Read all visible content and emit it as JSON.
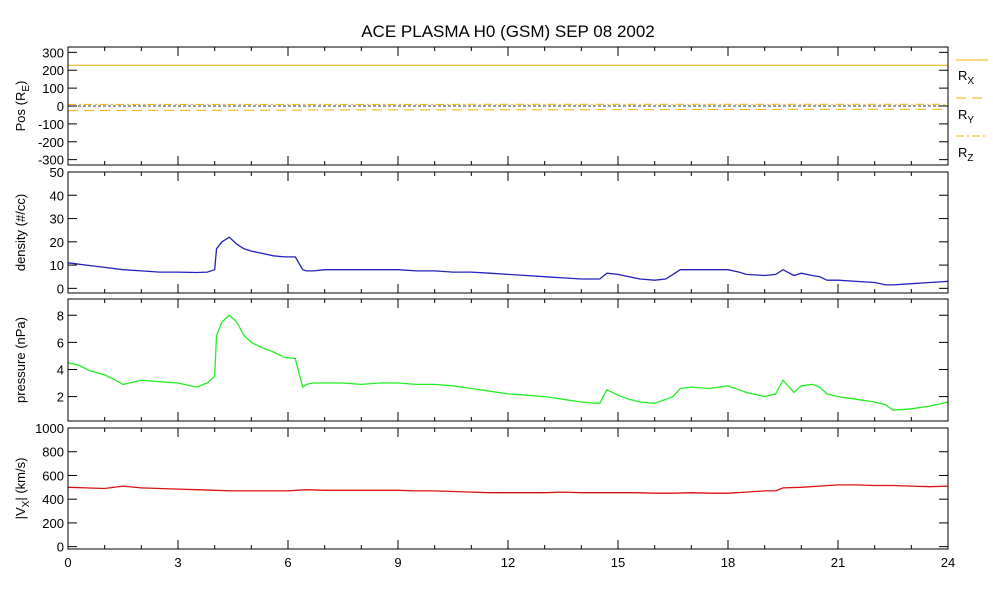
{
  "chart_data": {
    "type": "line",
    "title": "ACE PLASMA H0 (GSM)   SEP 08 2002",
    "x": {
      "range": [
        0,
        24
      ],
      "ticks": [
        0,
        3,
        6,
        9,
        12,
        15,
        18,
        21,
        24
      ],
      "tick_labels": [
        "0",
        "3",
        "6",
        "9",
        "12",
        "15",
        "18",
        "21",
        "24"
      ]
    },
    "grid": false,
    "legend_placement": "right of top panel",
    "panels": [
      {
        "id": "position",
        "ylabel": {
          "main": "Pos (R",
          "sub": "E",
          "tail": ")"
        },
        "ylim": [
          -330,
          330
        ],
        "yticks": [
          300,
          200,
          100,
          0,
          -100,
          -200,
          -300
        ],
        "ytick_labels": [
          "300",
          "200",
          "100",
          "0",
          "-100",
          "-200",
          "-300"
        ],
        "series": [
          {
            "name": "RX",
            "legend_main": "R",
            "legend_sub": "X",
            "color": "#f0b000",
            "dash": "solid",
            "x": [
              0,
              24
            ],
            "y": [
              228,
              228
            ]
          },
          {
            "name": "RY",
            "legend_main": "R",
            "legend_sub": "Y",
            "color": "#f0b000",
            "dash": "dashed",
            "x": [
              0,
              4,
              8,
              12,
              16,
              20,
              24
            ],
            "y": [
              -26,
              -24,
              -22,
              -21,
              -20,
              -19,
              -18
            ]
          },
          {
            "name": "RZ",
            "legend_main": "R",
            "legend_sub": "Z",
            "color": "#f0b000",
            "dash": "dashdot",
            "x": [
              0,
              24
            ],
            "y": [
              9,
              10
            ]
          }
        ],
        "zero_line": true
      },
      {
        "id": "density",
        "ylabel": {
          "main": "density (#/cc)"
        },
        "ylim": [
          -2,
          50
        ],
        "yticks": [
          50,
          40,
          30,
          20,
          10,
          0
        ],
        "ytick_labels": [
          "50",
          "40",
          "30",
          "20",
          "10",
          "0"
        ],
        "series": [
          {
            "name": "density",
            "color": "#2222bb",
            "x": [
              0,
              0.5,
              1,
              1.5,
              2,
              2.5,
              3,
              3.5,
              3.8,
              4.0,
              4.05,
              4.2,
              4.4,
              4.6,
              4.8,
              5.0,
              5.3,
              5.6,
              5.9,
              6.2,
              6.4,
              6.5,
              6.7,
              7,
              7.5,
              8,
              8.5,
              9,
              9.5,
              10,
              10.5,
              11,
              11.5,
              12,
              12.5,
              13,
              13.5,
              14,
              14.5,
              14.7,
              15,
              15.3,
              15.6,
              16,
              16.3,
              16.5,
              16.7,
              17,
              17.5,
              18,
              18.3,
              18.5,
              19,
              19.3,
              19.5,
              19.8,
              20,
              20.3,
              20.5,
              20.7,
              21,
              21.5,
              22,
              22.3,
              22.5,
              23,
              23.5,
              24
            ],
            "y": [
              11,
              10,
              9,
              8,
              7.5,
              7,
              7,
              6.8,
              7,
              8,
              17,
              20,
              22,
              19,
              17,
              16,
              15,
              14,
              13.5,
              13.5,
              8,
              7.5,
              7.5,
              8,
              8,
              8,
              8,
              8,
              7.5,
              7.5,
              7,
              7,
              6.5,
              6,
              5.5,
              5,
              4.5,
              4,
              4,
              6.5,
              6,
              5,
              4,
              3.5,
              4,
              6,
              8,
              8,
              8,
              8,
              7,
              6,
              5.5,
              6,
              8,
              5.5,
              6.5,
              5.5,
              5,
              3.5,
              3.5,
              3,
              2.5,
              1.5,
              1.5,
              2,
              2.5,
              3
            ]
          }
        ]
      },
      {
        "id": "pressure",
        "ylabel": {
          "main": "pressure (nPa)"
        },
        "ylim": [
          0.2,
          9.2
        ],
        "yticks": [
          8,
          6,
          4,
          2
        ],
        "ytick_labels": [
          "8",
          "6",
          "4",
          "2"
        ],
        "series": [
          {
            "name": "pressure",
            "color": "#22ee22",
            "x": [
              0,
              0.3,
              0.6,
              1,
              1.3,
              1.5,
              2,
              2.5,
              3,
              3.5,
              3.8,
              4.0,
              4.05,
              4.2,
              4.4,
              4.6,
              4.8,
              5.0,
              5.3,
              5.6,
              5.9,
              6.2,
              6.4,
              6.5,
              6.7,
              7,
              7.5,
              8,
              8.5,
              9,
              9.5,
              10,
              10.5,
              11,
              11.5,
              12,
              12.5,
              13,
              13.5,
              14,
              14.5,
              14.7,
              15,
              15.3,
              15.6,
              16,
              16.3,
              16.5,
              16.7,
              17,
              17.5,
              18,
              18.3,
              18.5,
              19,
              19.3,
              19.5,
              19.8,
              20,
              20.3,
              20.5,
              20.7,
              21,
              21.5,
              22,
              22.3,
              22.5,
              23,
              23.5,
              24
            ],
            "y": [
              4.5,
              4.3,
              3.9,
              3.6,
              3.2,
              2.9,
              3.2,
              3.1,
              3.0,
              2.7,
              3.0,
              3.5,
              6.5,
              7.5,
              8.0,
              7.5,
              6.5,
              6.0,
              5.6,
              5.3,
              4.9,
              4.8,
              2.7,
              2.9,
              3.0,
              3.0,
              3.0,
              2.9,
              3.0,
              3.0,
              2.9,
              2.9,
              2.8,
              2.6,
              2.4,
              2.2,
              2.1,
              2.0,
              1.8,
              1.6,
              1.5,
              2.5,
              2.1,
              1.8,
              1.6,
              1.5,
              1.8,
              2.0,
              2.6,
              2.7,
              2.6,
              2.8,
              2.5,
              2.3,
              2.0,
              2.2,
              3.2,
              2.3,
              2.8,
              2.9,
              2.7,
              2.2,
              2.0,
              1.8,
              1.6,
              1.4,
              1.0,
              1.1,
              1.3,
              1.6
            ]
          }
        ]
      },
      {
        "id": "vx",
        "ylabel": {
          "main": "|V",
          "sub": "X",
          "tail": "| (km/s)"
        },
        "ylim": [
          -20,
          1000
        ],
        "yticks": [
          1000,
          800,
          600,
          400,
          200,
          0
        ],
        "ytick_labels": [
          "1000",
          "800",
          "600",
          "400",
          "200",
          "0"
        ],
        "series": [
          {
            "name": "|VX|",
            "color": "#dd1111",
            "x": [
              0,
              0.5,
              1,
              1.5,
              2,
              2.5,
              3,
              3.5,
              4,
              4.5,
              5,
              5.5,
              6,
              6.5,
              7,
              7.5,
              8,
              8.5,
              9,
              9.5,
              10,
              10.5,
              11,
              11.5,
              12,
              12.5,
              13,
              13.5,
              14,
              14.5,
              15,
              15.5,
              16,
              16.5,
              17,
              17.5,
              18,
              18.5,
              19,
              19.3,
              19.5,
              20,
              20.5,
              21,
              21.5,
              22,
              22.5,
              23,
              23.5,
              24
            ],
            "y": [
              500,
              495,
              490,
              510,
              495,
              490,
              485,
              480,
              475,
              470,
              470,
              470,
              470,
              480,
              475,
              475,
              475,
              475,
              475,
              470,
              470,
              465,
              460,
              455,
              455,
              455,
              455,
              460,
              455,
              455,
              455,
              455,
              450,
              450,
              455,
              450,
              450,
              460,
              470,
              470,
              495,
              500,
              510,
              520,
              520,
              515,
              515,
              510,
              505,
              510
            ]
          }
        ]
      }
    ]
  }
}
